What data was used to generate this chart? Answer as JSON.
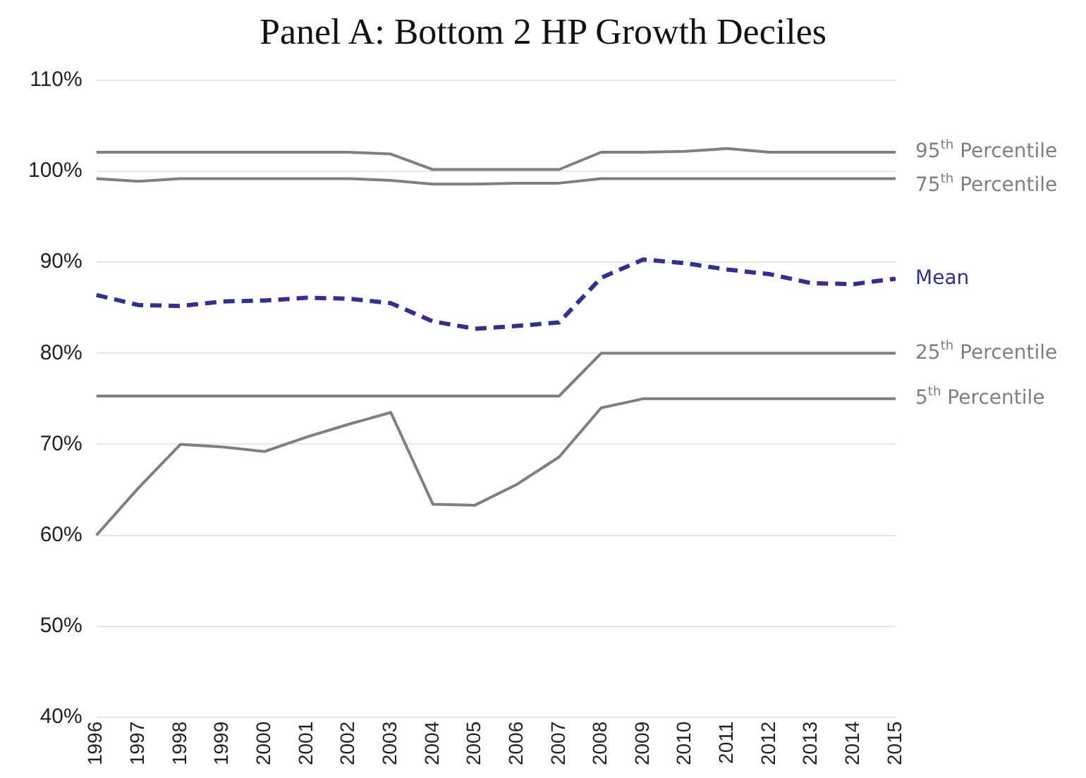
{
  "chart_data": {
    "type": "line",
    "title": "Panel A: Bottom 2 HP Growth Deciles",
    "categories": [
      "1996",
      "1997",
      "1998",
      "1999",
      "2000",
      "2001",
      "2002",
      "2003",
      "2004",
      "2005",
      "2006",
      "2007",
      "2008",
      "2009",
      "2010",
      "2011",
      "2012",
      "2013",
      "2014",
      "2015"
    ],
    "series": [
      {
        "name": "95$^{th}$ Percentile",
        "color": "#7f7f7f",
        "line_style": "solid",
        "values": [
          102.1,
          102.1,
          102.1,
          102.1,
          102.1,
          102.1,
          102.1,
          101.9,
          100.2,
          100.2,
          100.2,
          100.2,
          102.1,
          102.1,
          102.2,
          102.5,
          102.1,
          102.1,
          102.1,
          102.1
        ]
      },
      {
        "name": "75$^{th}$ Percentile",
        "color": "#7f7f7f",
        "line_style": "solid",
        "values": [
          99.2,
          98.9,
          99.2,
          99.2,
          99.2,
          99.2,
          99.2,
          99.0,
          98.6,
          98.6,
          98.7,
          98.7,
          99.2,
          99.2,
          99.2,
          99.2,
          99.2,
          99.2,
          99.2,
          99.2
        ]
      },
      {
        "name": "Mean",
        "color": "#2e3192",
        "line_style": "dashed",
        "values": [
          86.4,
          85.3,
          85.2,
          85.7,
          85.8,
          86.1,
          86.0,
          85.5,
          83.5,
          82.7,
          83.0,
          83.4,
          88.3,
          90.3,
          89.9,
          89.2,
          88.7,
          87.7,
          87.6,
          88.2
        ]
      },
      {
        "name": "25$^{th}$ Percentile",
        "color": "#7f7f7f",
        "line_style": "solid",
        "values": [
          75.3,
          75.3,
          75.3,
          75.3,
          75.3,
          75.3,
          75.3,
          75.3,
          75.3,
          75.3,
          75.3,
          75.3,
          80.0,
          80.0,
          80.0,
          80.0,
          80.0,
          80.0,
          80.0,
          80.0
        ]
      },
      {
        "name": "5$^{th}$ Percentile",
        "color": "#7f7f7f",
        "line_style": "solid",
        "values": [
          60.0,
          65.2,
          70.0,
          69.7,
          69.2,
          70.8,
          72.2,
          73.5,
          63.4,
          63.3,
          65.6,
          68.6,
          74.0,
          75.0,
          75.0,
          75.0,
          75.0,
          75.0,
          75.0,
          75.0
        ]
      }
    ],
    "ylim": [
      40,
      110
    ],
    "yticks": [
      {
        "value": 40,
        "label": "40%"
      },
      {
        "value": 50,
        "label": "50%"
      },
      {
        "value": 60,
        "label": "60%"
      },
      {
        "value": 70,
        "label": "70%"
      },
      {
        "value": 80,
        "label": "80%"
      },
      {
        "value": 90,
        "label": "90%"
      },
      {
        "value": 100,
        "label": "100%"
      },
      {
        "value": 110,
        "label": "110%"
      }
    ],
    "grid": "y",
    "legend": false,
    "marker": "none"
  }
}
